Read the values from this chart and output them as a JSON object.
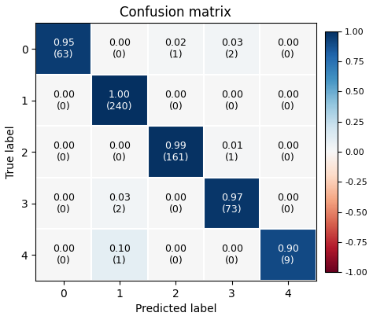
{
  "title": "Confusion matrix",
  "xlabel": "Predicted label",
  "ylabel": "True label",
  "matrix_values": [
    [
      0.95,
      0.0,
      0.02,
      0.03,
      0.0
    ],
    [
      0.0,
      1.0,
      0.0,
      0.0,
      0.0
    ],
    [
      0.0,
      0.0,
      0.99,
      0.01,
      0.0
    ],
    [
      0.0,
      0.03,
      0.0,
      0.97,
      0.0
    ],
    [
      0.0,
      0.1,
      0.0,
      0.0,
      0.9
    ]
  ],
  "matrix_counts": [
    [
      63,
      0,
      1,
      2,
      0
    ],
    [
      0,
      240,
      0,
      0,
      0
    ],
    [
      0,
      0,
      161,
      1,
      0
    ],
    [
      0,
      2,
      0,
      73,
      0
    ],
    [
      0,
      1,
      0,
      0,
      9
    ]
  ],
  "tick_labels": [
    "0",
    "1",
    "2",
    "3",
    "4"
  ],
  "cmap": "RdBu",
  "vmin": -1.0,
  "vmax": 1.0,
  "colorbar_ticks": [
    1.0,
    0.75,
    0.5,
    0.25,
    0.0,
    -0.25,
    -0.5,
    -0.75,
    -1.0
  ],
  "title_fontsize": 12,
  "label_fontsize": 10,
  "tick_fontsize": 10,
  "cell_fontsize": 9,
  "figsize": [
    4.74,
    4.07
  ],
  "dpi": 100
}
